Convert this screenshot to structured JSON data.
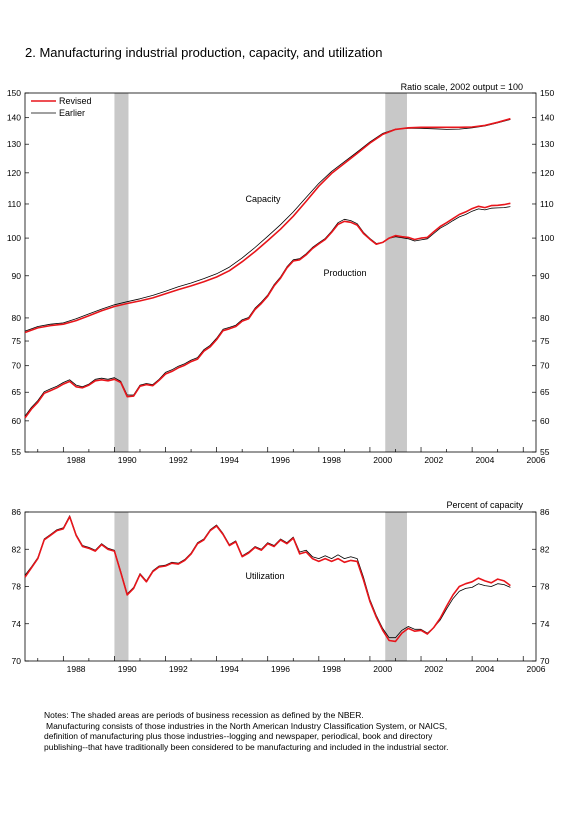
{
  "title": "2. Manufacturing industrial production, capacity, and utilization",
  "chart_data": [
    {
      "type": "line",
      "scale_note": "Ratio scale, 2002 output = 100",
      "y_scale": "log",
      "ylim": [
        55,
        150
      ],
      "xlim": [
        1986.5,
        2006.5
      ],
      "y_ticks": [
        55,
        60,
        65,
        70,
        75,
        80,
        90,
        100,
        110,
        120,
        130,
        140,
        150
      ],
      "x_ticks": [
        "1988",
        "1990",
        "1992",
        "1994",
        "1996",
        "1998",
        "2000",
        "2002",
        "2004",
        "2006"
      ],
      "recessions": [
        [
          1990.0,
          1990.55
        ],
        [
          2000.6,
          2001.45
        ]
      ],
      "legend": [
        {
          "label": "Revised",
          "color": "#e8151b"
        },
        {
          "label": "Earlier",
          "color": "#000000"
        }
      ],
      "annotations": [
        "Capacity",
        "Production"
      ],
      "series": [
        {
          "name": "Capacity",
          "kind": "revised",
          "color": "#e8151b",
          "x": [
            1986.5,
            1987,
            1987.5,
            1988,
            1988.5,
            1989,
            1989.5,
            1990,
            1990.5,
            1991,
            1991.5,
            1992,
            1992.5,
            1993,
            1993.5,
            1994,
            1994.5,
            1995,
            1995.5,
            1996,
            1996.5,
            1997,
            1997.5,
            1998,
            1998.5,
            1999,
            1999.5,
            2000,
            2000.5,
            2001,
            2001.5,
            2002,
            2002.5,
            2003,
            2003.5,
            2004,
            2004.5,
            2005,
            2005.5
          ],
          "y": [
            76.8,
            77.8,
            78.3,
            78.6,
            79.4,
            80.5,
            81.6,
            82.6,
            83.3,
            83.9,
            84.6,
            85.6,
            86.6,
            87.5,
            88.5,
            89.7,
            91.3,
            93.6,
            96.3,
            99.3,
            102.5,
            106.3,
            110.8,
            115.6,
            119.8,
            123.2,
            126.7,
            130.4,
            133.6,
            135.5,
            136.1,
            136.3,
            136.3,
            136.3,
            136.3,
            136.4,
            137.0,
            138.2,
            139.6
          ]
        },
        {
          "name": "Capacity",
          "kind": "earlier",
          "color": "#000000",
          "x": [
            1986.5,
            1987,
            1987.5,
            1988,
            1988.5,
            1989,
            1989.5,
            1990,
            1990.5,
            1991,
            1991.5,
            1992,
            1992.5,
            1993,
            1993.5,
            1994,
            1994.5,
            1995,
            1995.5,
            1996,
            1996.5,
            1997,
            1997.5,
            1998,
            1998.5,
            1999,
            1999.5,
            2000,
            2000.5,
            2001,
            2001.5,
            2002,
            2002.5,
            2003,
            2003.5,
            2004,
            2004.5,
            2005,
            2005.5
          ],
          "y": [
            77.1,
            78.1,
            78.6,
            78.9,
            79.8,
            80.9,
            82.0,
            83.0,
            83.7,
            84.4,
            85.2,
            86.2,
            87.3,
            88.2,
            89.3,
            90.5,
            92.2,
            94.6,
            97.4,
            100.5,
            103.8,
            107.6,
            112.0,
            116.5,
            120.5,
            123.8,
            127.2,
            130.8,
            134.0,
            135.6,
            135.9,
            135.9,
            135.7,
            135.5,
            135.6,
            136.1,
            136.8,
            138.0,
            139.3
          ]
        },
        {
          "name": "Production",
          "kind": "revised",
          "color": "#e8151b",
          "x": [
            1986.5,
            1986.75,
            1987,
            1987.25,
            1987.5,
            1987.75,
            1988,
            1988.25,
            1988.5,
            1988.75,
            1989,
            1989.25,
            1989.5,
            1989.75,
            1990,
            1990.25,
            1990.5,
            1990.75,
            1991,
            1991.25,
            1991.5,
            1991.75,
            1992,
            1992.25,
            1992.5,
            1992.75,
            1993,
            1993.25,
            1993.5,
            1993.75,
            1994,
            1994.25,
            1994.5,
            1994.75,
            1995,
            1995.25,
            1995.5,
            1995.75,
            1996,
            1996.25,
            1996.5,
            1996.75,
            1997,
            1997.25,
            1997.5,
            1997.75,
            1998,
            1998.25,
            1998.5,
            1998.75,
            1999,
            1999.25,
            1999.5,
            1999.75,
            2000,
            2000.25,
            2000.5,
            2000.75,
            2001,
            2001.25,
            2001.5,
            2001.75,
            2002,
            2002.25,
            2002.5,
            2002.75,
            2003,
            2003.25,
            2003.5,
            2003.75,
            2004,
            2004.25,
            2004.5,
            2004.75,
            2005,
            2005.25,
            2005.5
          ],
          "y": [
            60.5,
            62.0,
            63.2,
            64.8,
            65.3,
            65.8,
            66.5,
            67.0,
            66.0,
            65.8,
            66.3,
            67.1,
            67.3,
            67.1,
            67.4,
            66.8,
            64.2,
            64.3,
            66.1,
            66.4,
            66.2,
            67.2,
            68.4,
            68.9,
            69.6,
            70.1,
            70.8,
            71.3,
            72.9,
            73.8,
            75.3,
            77.2,
            77.6,
            78.1,
            79.3,
            79.8,
            81.9,
            83.3,
            85.0,
            87.5,
            89.4,
            92.0,
            93.8,
            94.1,
            95.4,
            97.1,
            98.4,
            99.6,
            101.6,
            103.9,
            104.8,
            104.5,
            103.7,
            101.3,
            99.7,
            98.3,
            98.8,
            100.0,
            100.7,
            100.4,
            100.2,
            99.6,
            100.0,
            100.2,
            101.8,
            103.3,
            104.4,
            105.6,
            106.8,
            107.6,
            108.6,
            109.3,
            108.9,
            109.5,
            109.6,
            109.8,
            110.2
          ]
        },
        {
          "name": "Production",
          "kind": "earlier",
          "color": "#000000",
          "x": [
            1986.5,
            1986.75,
            1987,
            1987.25,
            1987.5,
            1987.75,
            1988,
            1988.25,
            1988.5,
            1988.75,
            1989,
            1989.25,
            1989.5,
            1989.75,
            1990,
            1990.25,
            1990.5,
            1990.75,
            1991,
            1991.25,
            1991.5,
            1991.75,
            1992,
            1992.25,
            1992.5,
            1992.75,
            1993,
            1993.25,
            1993.5,
            1993.75,
            1994,
            1994.25,
            1994.5,
            1994.75,
            1995,
            1995.25,
            1995.5,
            1995.75,
            1996,
            1996.25,
            1996.5,
            1996.75,
            1997,
            1997.25,
            1997.5,
            1997.75,
            1998,
            1998.25,
            1998.5,
            1998.75,
            1999,
            1999.25,
            1999.5,
            1999.75,
            2000,
            2000.25,
            2000.5,
            2000.75,
            2001,
            2001.25,
            2001.5,
            2001.75,
            2002,
            2002.25,
            2002.5,
            2002.75,
            2003,
            2003.25,
            2003.5,
            2003.75,
            2004,
            2004.25,
            2004.5,
            2004.75,
            2005,
            2005.25,
            2005.5
          ],
          "y": [
            60.8,
            62.3,
            63.5,
            65.1,
            65.6,
            66.1,
            66.8,
            67.3,
            66.3,
            66.0,
            66.5,
            67.4,
            67.6,
            67.4,
            67.7,
            67.0,
            64.5,
            64.5,
            66.3,
            66.6,
            66.4,
            67.4,
            68.7,
            69.2,
            69.9,
            70.4,
            71.1,
            71.6,
            73.2,
            74.1,
            75.6,
            77.5,
            77.9,
            78.4,
            79.6,
            80.1,
            82.2,
            83.6,
            85.3,
            87.8,
            89.7,
            92.3,
            94.1,
            94.4,
            95.7,
            97.4,
            98.7,
            99.9,
            101.9,
            104.4,
            105.4,
            105.0,
            104.1,
            101.6,
            99.9,
            98.5,
            98.8,
            99.9,
            100.4,
            100.1,
            99.8,
            99.2,
            99.5,
            99.8,
            101.3,
            102.8,
            103.8,
            105.0,
            106.1,
            106.8,
            107.8,
            108.5,
            108.2,
            108.7,
            108.8,
            108.9,
            109.2
          ]
        }
      ]
    },
    {
      "type": "line",
      "scale_note": "Percent of capacity",
      "ylim": [
        70,
        86
      ],
      "xlim": [
        1986.5,
        2006.5
      ],
      "y_ticks": [
        70,
        74,
        78,
        82,
        86
      ],
      "x_ticks": [
        "1988",
        "1990",
        "1992",
        "1994",
        "1996",
        "1998",
        "2000",
        "2002",
        "2004",
        "2006"
      ],
      "recessions": [
        [
          1990.0,
          1990.55
        ],
        [
          2000.6,
          2001.45
        ]
      ],
      "annotations": [
        "Utilization"
      ],
      "series": [
        {
          "name": "Utilization",
          "kind": "revised",
          "color": "#e8151b",
          "x": [
            1986.5,
            1986.75,
            1987,
            1987.25,
            1987.5,
            1987.75,
            1988,
            1988.25,
            1988.5,
            1988.75,
            1989,
            1989.25,
            1989.5,
            1989.75,
            1990,
            1990.25,
            1990.5,
            1990.75,
            1991,
            1991.25,
            1991.5,
            1991.75,
            1992,
            1992.25,
            1992.5,
            1992.75,
            1993,
            1993.25,
            1993.5,
            1993.75,
            1994,
            1994.25,
            1994.5,
            1994.75,
            1995,
            1995.25,
            1995.5,
            1995.75,
            1996,
            1996.25,
            1996.5,
            1996.75,
            1997,
            1997.25,
            1997.5,
            1997.75,
            1998,
            1998.25,
            1998.5,
            1998.75,
            1999,
            1999.25,
            1999.5,
            1999.75,
            2000,
            2000.25,
            2000.5,
            2000.75,
            2001,
            2001.25,
            2001.5,
            2001.75,
            2002,
            2002.25,
            2002.5,
            2002.75,
            2003,
            2003.25,
            2003.5,
            2003.75,
            2004,
            2004.25,
            2004.5,
            2004.75,
            2005,
            2005.25,
            2005.5
          ],
          "y": [
            79.0,
            80.0,
            81.0,
            83.0,
            83.5,
            84.0,
            84.2,
            85.5,
            83.5,
            82.3,
            82.1,
            81.8,
            82.5,
            82.0,
            81.8,
            79.5,
            77.1,
            77.8,
            79.3,
            78.5,
            79.6,
            80.1,
            80.2,
            80.5,
            80.4,
            80.8,
            81.5,
            82.6,
            83.0,
            84.0,
            84.5,
            83.6,
            82.4,
            82.8,
            81.2,
            81.6,
            82.2,
            81.9,
            82.6,
            82.3,
            83.0,
            82.6,
            83.2,
            81.5,
            81.7,
            81.0,
            80.7,
            81.0,
            80.7,
            81.0,
            80.6,
            80.8,
            80.7,
            78.7,
            76.4,
            74.7,
            73.3,
            72.2,
            72.1,
            73.0,
            73.5,
            73.2,
            73.3,
            72.9,
            73.6,
            74.6,
            75.9,
            77.1,
            78.0,
            78.3,
            78.5,
            78.9,
            78.6,
            78.4,
            78.8,
            78.6,
            78.1
          ]
        },
        {
          "name": "Utilization",
          "kind": "earlier",
          "color": "#000000",
          "x": [
            1986.5,
            1986.75,
            1987,
            1987.25,
            1987.5,
            1987.75,
            1988,
            1988.25,
            1988.5,
            1988.75,
            1989,
            1989.25,
            1989.5,
            1989.75,
            1990,
            1990.25,
            1990.5,
            1990.75,
            1991,
            1991.25,
            1991.5,
            1991.75,
            1992,
            1992.25,
            1992.5,
            1992.75,
            1993,
            1993.25,
            1993.5,
            1993.75,
            1994,
            1994.25,
            1994.5,
            1994.75,
            1995,
            1995.25,
            1995.5,
            1995.75,
            1996,
            1996.25,
            1996.5,
            1996.75,
            1997,
            1997.25,
            1997.5,
            1997.75,
            1998,
            1998.25,
            1998.5,
            1998.75,
            1999,
            1999.25,
            1999.5,
            1999.75,
            2000,
            2000.25,
            2000.5,
            2000.75,
            2001,
            2001.25,
            2001.5,
            2001.75,
            2002,
            2002.25,
            2002.5,
            2002.75,
            2003,
            2003.25,
            2003.5,
            2003.75,
            2004,
            2004.25,
            2004.5,
            2004.75,
            2005,
            2005.25,
            2005.5
          ],
          "y": [
            79.2,
            80.1,
            81.1,
            83.1,
            83.6,
            84.1,
            84.3,
            85.6,
            83.6,
            82.4,
            82.2,
            81.9,
            82.6,
            82.1,
            81.9,
            79.6,
            77.2,
            77.9,
            79.4,
            78.6,
            79.7,
            80.2,
            80.3,
            80.6,
            80.5,
            80.9,
            81.6,
            82.7,
            83.1,
            84.1,
            84.6,
            83.7,
            82.5,
            82.9,
            81.3,
            81.7,
            82.3,
            82.0,
            82.7,
            82.4,
            83.1,
            82.7,
            83.3,
            81.7,
            81.9,
            81.2,
            81.0,
            81.3,
            81.0,
            81.4,
            81.0,
            81.2,
            81.0,
            79.0,
            76.6,
            74.9,
            73.5,
            72.5,
            72.5,
            73.3,
            73.7,
            73.4,
            73.4,
            73.0,
            73.6,
            74.4,
            75.6,
            76.7,
            77.5,
            77.8,
            77.9,
            78.3,
            78.1,
            78.0,
            78.3,
            78.2,
            77.9
          ]
        }
      ]
    }
  ],
  "notes": [
    "Notes: The shaded areas are periods of business recession as defined by the NBER.",
    "Manufacturing consists of those industries in the North American Industry Classification System, or NAICS,",
    "definition of manufacturing plus those industries--logging and newspaper, periodical, book and directory",
    "publishing--that have traditionally been considered to be manufacturing and included in the industrial sector."
  ]
}
